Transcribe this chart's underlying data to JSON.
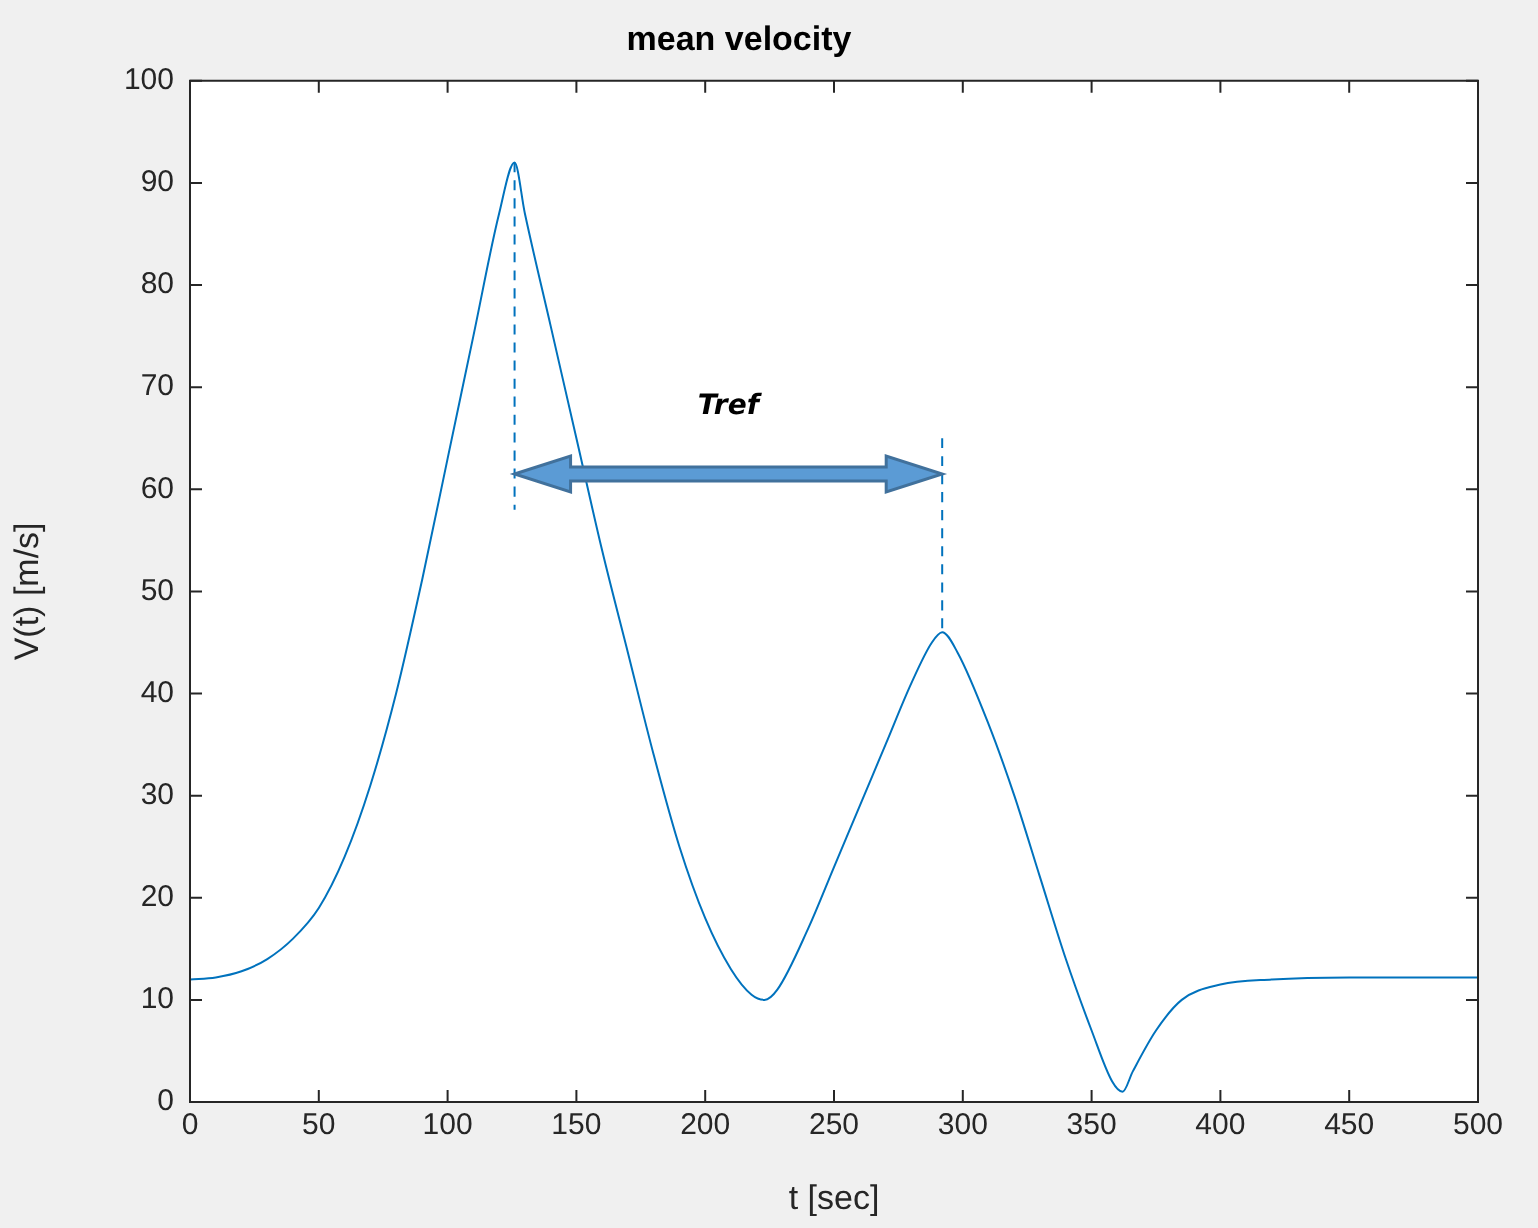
{
  "chart_data": {
    "type": "line",
    "title": "mean velocity",
    "xlabel": "t [sec]",
    "ylabel": "V(t) [m/s]",
    "xlim": [
      0,
      500
    ],
    "xticks": [
      0,
      50,
      100,
      150,
      200,
      250,
      300,
      350,
      400,
      450,
      500
    ],
    "ylim": [
      0,
      100
    ],
    "yticks": [
      0,
      10,
      20,
      30,
      40,
      50,
      60,
      70,
      80,
      90,
      100
    ],
    "grid": false,
    "legend": false,
    "marker": "none",
    "annotations": [
      "Tref"
    ],
    "series": [
      {
        "color": "#0072bd",
        "line_style": "solid",
        "x": [
          0,
          10,
          20,
          30,
          40,
          50,
          60,
          70,
          80,
          90,
          100,
          110,
          120,
          126,
          130,
          140,
          150,
          160,
          170,
          180,
          190,
          200,
          210,
          218,
          223,
          228,
          240,
          250,
          260,
          270,
          280,
          288,
          292,
          298,
          310,
          320,
          330,
          340,
          350,
          358,
          362,
          366,
          375,
          385,
          400,
          420,
          450,
          500
        ],
        "values": [
          12,
          12.2,
          12.8,
          14,
          16,
          19,
          24,
          31,
          40,
          51,
          63,
          75,
          87,
          92,
          87,
          76,
          65,
          54,
          44,
          34,
          25,
          18,
          13,
          10.5,
          10,
          11,
          17,
          23,
          29,
          35,
          41,
          45,
          46,
          44,
          37,
          30,
          22,
          14,
          7,
          2,
          1,
          3,
          7,
          10,
          11.5,
          12,
          12.2,
          12.2
        ]
      },
      {
        "color": "#0072bd",
        "line_style": "dashed",
        "x": [
          126,
          126
        ],
        "values": [
          92,
          58
        ]
      },
      {
        "color": "#0072bd",
        "line_style": "dashed",
        "x": [
          292,
          292
        ],
        "values": [
          65,
          46
        ]
      }
    ]
  }
}
